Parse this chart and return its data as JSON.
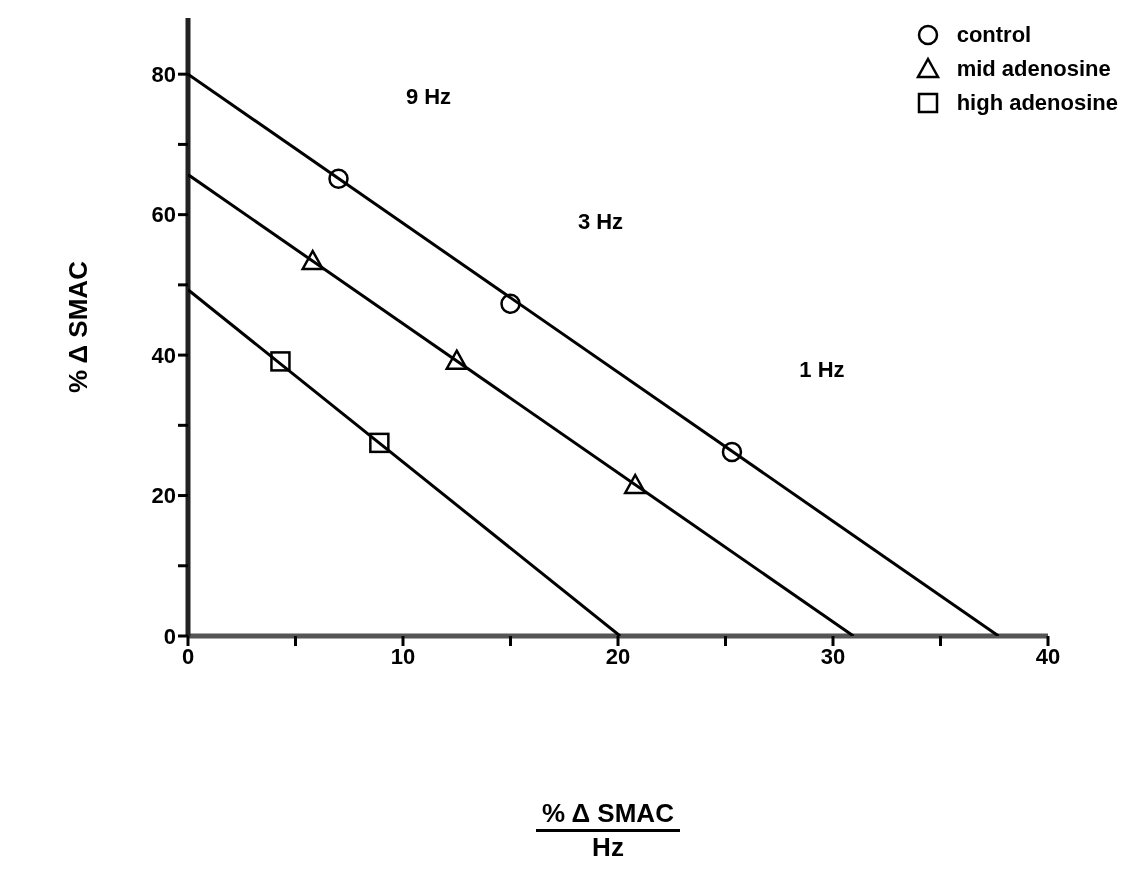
{
  "chart_data": {
    "type": "scatter",
    "xlabel": "% Δ SMAC Hz",
    "ylabel": "% Δ SMAC",
    "xlim": [
      0,
      40
    ],
    "xticks": [
      0,
      {
        "value": 5,
        "label": null
      },
      10,
      {
        "value": 15,
        "label": null
      },
      20,
      {
        "value": 25,
        "label": null
      },
      30,
      {
        "value": 35,
        "label": null
      },
      40
    ],
    "ylim": [
      0,
      88
    ],
    "yticks": [
      0,
      {
        "value": 10,
        "label": null
      },
      20,
      {
        "value": 30,
        "label": null
      },
      40,
      {
        "value": 50,
        "label": null
      },
      60,
      {
        "value": 70,
        "label": null
      },
      80
    ],
    "legend": "top right",
    "series": [
      {
        "name": "control",
        "color": "#000000",
        "marker": "circle",
        "x": [
          7.0,
          15.0,
          25.3
        ],
        "values": [
          65.1,
          47.3,
          26.2
        ]
      },
      {
        "name": "mid adenosine",
        "color": "#000000",
        "marker": "triangle",
        "x": [
          5.8,
          12.5,
          20.8
        ],
        "values": [
          53.4,
          39.2,
          21.5
        ]
      },
      {
        "name": "high adenosine",
        "color": "#000000",
        "marker": "square",
        "x": [
          4.3,
          8.9
        ],
        "values": [
          39.1,
          27.5
        ]
      },
      {
        "type": "line",
        "color": "#000000",
        "marker": "none",
        "x": [
          0,
          37.7
        ],
        "values": [
          80,
          0
        ]
      },
      {
        "type": "line",
        "color": "#000000",
        "marker": "none",
        "x": [
          0,
          30.95
        ],
        "values": [
          65.7,
          0
        ]
      },
      {
        "type": "line",
        "color": "#000000",
        "marker": "none",
        "x": [
          0,
          20.1
        ],
        "values": [
          49.3,
          0
        ]
      }
    ],
    "annotations": [
      "9 Hz",
      "3 Hz",
      "1 Hz"
    ]
  }
}
